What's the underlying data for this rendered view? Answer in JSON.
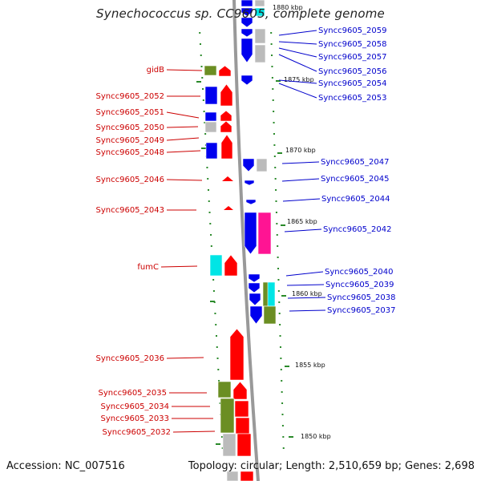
{
  "title": "Synechococcus sp. CC9605, complete genome",
  "accession_text": "Accession: NC_007516",
  "summary_text": "Topology: circular; Length: 2,510,659 bp; Genes: 2,698",
  "colors": {
    "left_label": "#cc0000",
    "right_label": "#0000cc",
    "backbone": "#999999",
    "tick": "#2a8a2a",
    "red": "#ff0000",
    "blue": "#0000ee",
    "green": "#6b8e23",
    "gray": "#bbbbbb",
    "cyan": "#00e5e5",
    "magenta": "#ff1493"
  },
  "scale_labels": [
    "1880 kbp",
    "1875 kbp",
    "1870 kbp",
    "1865 kbp",
    "1860 kbp",
    "1855 kbp",
    "1850 kbp"
  ],
  "left_labels": [
    "gidB",
    "Syncc9605_2052",
    "Syncc9605_2051",
    "Syncc9605_2050",
    "Syncc9605_2049",
    "Syncc9605_2048",
    "Syncc9605_2046",
    "Syncc9605_2043",
    "fumC",
    "Syncc9605_2036",
    "Syncc9605_2035",
    "Syncc9605_2034",
    "Syncc9605_2033",
    "Syncc9605_2032"
  ],
  "right_labels": [
    "Syncc9605_2059",
    "Syncc9605_2058",
    "Syncc9605_2057",
    "Syncc9605_2056",
    "Syncc9605_2054",
    "Syncc9605_2053",
    "Syncc9605_2047",
    "Syncc9605_2045",
    "Syncc9605_2044",
    "Syncc9605_2042",
    "Syncc9605_2040",
    "Syncc9605_2039",
    "Syncc9605_2038",
    "Syncc9605_2037"
  ]
}
